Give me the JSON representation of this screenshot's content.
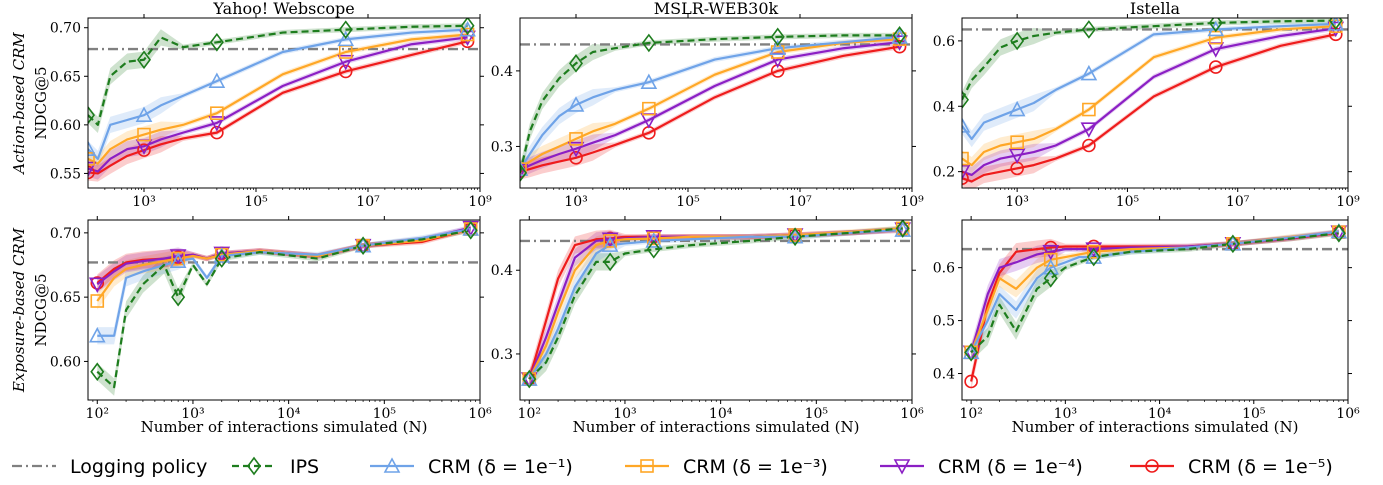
{
  "colors": {
    "logging": "#808080",
    "ips": "#1e7d1e",
    "crm1": "#6fa3e8",
    "crm3": "#ffa726",
    "crm4": "#8b1fc4",
    "crm5": "#ee1c1c"
  },
  "ylabel": "NDCG@5",
  "row_labels": [
    "Action-based CRM",
    "Exposure-based CRM"
  ],
  "legend": [
    {
      "key": "logging",
      "label": "Logging policy",
      "marker": "none",
      "dash": "dashdot"
    },
    {
      "key": "ips",
      "label": "IPS",
      "marker": "diamond",
      "dash": "dashed"
    },
    {
      "key": "crm1",
      "label": "CRM (δ = 1e⁻¹)",
      "marker": "triangle-up",
      "dash": "solid"
    },
    {
      "key": "crm3",
      "label": "CRM (δ = 1e⁻³)",
      "marker": "square",
      "dash": "solid"
    },
    {
      "key": "crm4",
      "label": "CRM (δ = 1e⁻⁴)",
      "marker": "triangle-down",
      "dash": "solid"
    },
    {
      "key": "crm5",
      "label": "CRM (δ = 1e⁻⁵)",
      "marker": "circle",
      "dash": "solid"
    }
  ],
  "chart_data": [
    {
      "type": "line",
      "title": "Yahoo! Webscope",
      "xlabel": "",
      "ylabel": "NDCG@5",
      "xscale": "log",
      "xlim": [
        100,
        1000000000.0
      ],
      "ylim": [
        0.535,
        0.71
      ],
      "xticks": [
        "10³",
        "10⁵",
        "10⁷",
        "10⁹"
      ],
      "yticks": [
        "0.55",
        "0.60",
        "0.65",
        "0.70"
      ],
      "logging": 0.678,
      "x": [
        100,
        150,
        250,
        500,
        1000,
        2000,
        5000,
        20000,
        300000,
        4000000,
        60000000,
        600000000
      ],
      "series": [
        {
          "key": "ips",
          "values": [
            0.61,
            0.6,
            0.65,
            0.665,
            0.667,
            0.69,
            0.68,
            0.685,
            0.695,
            0.698,
            0.701,
            0.702
          ]
        },
        {
          "key": "crm1",
          "values": [
            0.575,
            0.565,
            0.6,
            0.605,
            0.61,
            0.62,
            0.63,
            0.645,
            0.675,
            0.688,
            0.695,
            0.698
          ]
        },
        {
          "key": "crm3",
          "values": [
            0.565,
            0.56,
            0.575,
            0.585,
            0.59,
            0.595,
            0.6,
            0.612,
            0.652,
            0.675,
            0.688,
            0.693
          ]
        },
        {
          "key": "crm4",
          "values": [
            0.555,
            0.552,
            0.565,
            0.575,
            0.578,
            0.585,
            0.592,
            0.602,
            0.64,
            0.665,
            0.683,
            0.69
          ]
        },
        {
          "key": "crm5",
          "values": [
            0.551,
            0.55,
            0.558,
            0.568,
            0.574,
            0.58,
            0.586,
            0.592,
            0.633,
            0.655,
            0.672,
            0.686
          ]
        }
      ]
    },
    {
      "type": "line",
      "title": "MSLR-WEB30k",
      "xlabel": "",
      "ylabel": "",
      "xscale": "log",
      "xlim": [
        100,
        1000000000.0
      ],
      "ylim": [
        0.245,
        0.47
      ],
      "xticks": [
        "10³",
        "10⁵",
        "10⁷",
        "10⁹"
      ],
      "yticks": [
        "0.3",
        "0.4"
      ],
      "logging": 0.435,
      "x": [
        100,
        150,
        250,
        500,
        1000,
        2000,
        5000,
        20000,
        300000,
        4000000,
        60000000,
        600000000
      ],
      "series": [
        {
          "key": "ips",
          "values": [
            0.265,
            0.32,
            0.36,
            0.39,
            0.41,
            0.425,
            0.43,
            0.437,
            0.442,
            0.445,
            0.447,
            0.447
          ]
        },
        {
          "key": "crm1",
          "values": [
            0.27,
            0.29,
            0.315,
            0.34,
            0.355,
            0.365,
            0.375,
            0.385,
            0.415,
            0.43,
            0.438,
            0.445
          ]
        },
        {
          "key": "crm3",
          "values": [
            0.27,
            0.28,
            0.29,
            0.3,
            0.31,
            0.32,
            0.33,
            0.35,
            0.395,
            0.425,
            0.437,
            0.442
          ]
        },
        {
          "key": "crm4",
          "values": [
            0.268,
            0.275,
            0.282,
            0.29,
            0.297,
            0.305,
            0.315,
            0.335,
            0.38,
            0.415,
            0.43,
            0.438
          ]
        },
        {
          "key": "crm5",
          "values": [
            0.267,
            0.27,
            0.275,
            0.28,
            0.285,
            0.292,
            0.302,
            0.318,
            0.365,
            0.4,
            0.42,
            0.432
          ]
        }
      ]
    },
    {
      "type": "line",
      "title": "Istella",
      "xlabel": "",
      "ylabel": "",
      "xscale": "log",
      "xlim": [
        100,
        1000000000.0
      ],
      "ylim": [
        0.15,
        0.67
      ],
      "xticks": [
        "10³",
        "10⁵",
        "10⁷",
        "10⁹"
      ],
      "yticks": [
        "0.2",
        "0.4",
        "0.6"
      ],
      "logging": 0.635,
      "x": [
        100,
        150,
        250,
        500,
        1000,
        2000,
        5000,
        20000,
        300000,
        4000000,
        60000000,
        600000000
      ],
      "series": [
        {
          "key": "ips",
          "values": [
            0.42,
            0.48,
            0.52,
            0.58,
            0.6,
            0.615,
            0.625,
            0.635,
            0.645,
            0.655,
            0.66,
            0.662
          ]
        },
        {
          "key": "crm1",
          "values": [
            0.34,
            0.3,
            0.35,
            0.37,
            0.39,
            0.41,
            0.45,
            0.5,
            0.62,
            0.635,
            0.645,
            0.652
          ]
        },
        {
          "key": "crm3",
          "values": [
            0.24,
            0.22,
            0.26,
            0.28,
            0.29,
            0.3,
            0.33,
            0.39,
            0.55,
            0.61,
            0.635,
            0.645
          ]
        },
        {
          "key": "crm4",
          "values": [
            0.2,
            0.19,
            0.22,
            0.24,
            0.25,
            0.26,
            0.28,
            0.33,
            0.49,
            0.575,
            0.615,
            0.638
          ]
        },
        {
          "key": "crm5",
          "values": [
            0.18,
            0.17,
            0.19,
            0.2,
            0.21,
            0.22,
            0.24,
            0.28,
            0.43,
            0.52,
            0.585,
            0.62
          ]
        }
      ]
    },
    {
      "type": "line",
      "title": "",
      "xlabel": "Number of interactions simulated (N)",
      "ylabel": "NDCG@5",
      "xscale": "log",
      "xlim": [
        80,
        1000000.0
      ],
      "ylim": [
        0.57,
        0.71
      ],
      "xticks": [
        "10²",
        "10³",
        "10⁴",
        "10⁵",
        "10⁶"
      ],
      "yticks": [
        "0.60",
        "0.65",
        "0.70"
      ],
      "logging": 0.677,
      "x": [
        100,
        150,
        200,
        300,
        500,
        700,
        1000,
        1400,
        2000,
        5000,
        20000,
        60000,
        250000,
        800000
      ],
      "series": [
        {
          "key": "ips",
          "values": [
            0.592,
            0.58,
            0.64,
            0.66,
            0.675,
            0.65,
            0.675,
            0.66,
            0.68,
            0.685,
            0.68,
            0.69,
            0.695,
            0.702
          ]
        },
        {
          "key": "crm1",
          "values": [
            0.62,
            0.62,
            0.665,
            0.67,
            0.675,
            0.678,
            0.68,
            0.665,
            0.682,
            0.685,
            0.683,
            0.69,
            0.696,
            0.703
          ]
        },
        {
          "key": "crm3",
          "values": [
            0.647,
            0.665,
            0.672,
            0.675,
            0.678,
            0.68,
            0.682,
            0.68,
            0.683,
            0.686,
            0.682,
            0.69,
            0.694,
            0.703
          ]
        },
        {
          "key": "crm4",
          "values": [
            0.66,
            0.67,
            0.676,
            0.678,
            0.68,
            0.682,
            0.683,
            0.68,
            0.684,
            0.686,
            0.682,
            0.69,
            0.695,
            0.704
          ]
        },
        {
          "key": "crm5",
          "values": [
            0.661,
            0.672,
            0.677,
            0.679,
            0.68,
            0.681,
            0.683,
            0.68,
            0.684,
            0.686,
            0.682,
            0.69,
            0.693,
            0.703
          ]
        }
      ]
    },
    {
      "type": "line",
      "title": "",
      "xlabel": "Number of interactions simulated (N)",
      "ylabel": "",
      "xscale": "log",
      "xlim": [
        80,
        1000000.0
      ],
      "ylim": [
        0.245,
        0.46
      ],
      "xticks": [
        "10²",
        "10³",
        "10⁴",
        "10⁵",
        "10⁶"
      ],
      "yticks": [
        "0.3",
        "0.4"
      ],
      "logging": 0.435,
      "x": [
        100,
        150,
        200,
        300,
        500,
        700,
        1000,
        2000,
        5000,
        20000,
        60000,
        250000,
        800000
      ],
      "series": [
        {
          "key": "ips",
          "values": [
            0.27,
            0.29,
            0.32,
            0.37,
            0.41,
            0.41,
            0.42,
            0.425,
            0.43,
            0.435,
            0.44,
            0.445,
            0.45
          ]
        },
        {
          "key": "crm1",
          "values": [
            0.27,
            0.3,
            0.33,
            0.38,
            0.42,
            0.43,
            0.432,
            0.435,
            0.437,
            0.44,
            0.44,
            0.445,
            0.448
          ]
        },
        {
          "key": "crm3",
          "values": [
            0.27,
            0.31,
            0.35,
            0.4,
            0.43,
            0.435,
            0.437,
            0.438,
            0.44,
            0.44,
            0.442,
            0.446,
            0.45
          ]
        },
        {
          "key": "crm4",
          "values": [
            0.27,
            0.32,
            0.36,
            0.415,
            0.435,
            0.437,
            0.438,
            0.44,
            0.44,
            0.44,
            0.442,
            0.445,
            0.449
          ]
        },
        {
          "key": "crm5",
          "values": [
            0.27,
            0.34,
            0.39,
            0.43,
            0.437,
            0.438,
            0.44,
            0.44,
            0.44,
            0.44,
            0.442,
            0.445,
            0.448
          ]
        }
      ]
    },
    {
      "type": "line",
      "title": "",
      "xlabel": "Number of interactions simulated (N)",
      "ylabel": "",
      "xscale": "log",
      "xlim": [
        80,
        1000000.0
      ],
      "ylim": [
        0.35,
        0.69
      ],
      "xticks": [
        "10²",
        "10³",
        "10⁴",
        "10⁵",
        "10⁶"
      ],
      "yticks": [
        "0.4",
        "0.5",
        "0.6"
      ],
      "logging": 0.635,
      "x": [
        100,
        150,
        200,
        300,
        500,
        700,
        1000,
        1400,
        2000,
        5000,
        20000,
        60000,
        250000,
        800000
      ],
      "series": [
        {
          "key": "ips",
          "values": [
            0.44,
            0.47,
            0.53,
            0.48,
            0.56,
            0.58,
            0.6,
            0.61,
            0.62,
            0.63,
            0.635,
            0.645,
            0.655,
            0.665
          ]
        },
        {
          "key": "crm1",
          "values": [
            0.44,
            0.5,
            0.55,
            0.52,
            0.58,
            0.6,
            0.61,
            0.62,
            0.62,
            0.63,
            0.638,
            0.645,
            0.657,
            0.668
          ]
        },
        {
          "key": "crm3",
          "values": [
            0.44,
            0.52,
            0.58,
            0.56,
            0.6,
            0.615,
            0.62,
            0.625,
            0.63,
            0.635,
            0.638,
            0.645,
            0.658,
            0.667
          ]
        },
        {
          "key": "crm4",
          "values": [
            0.44,
            0.55,
            0.6,
            0.61,
            0.625,
            0.63,
            0.635,
            0.635,
            0.635,
            0.638,
            0.64,
            0.645,
            0.656,
            0.667
          ]
        },
        {
          "key": "crm5",
          "values": [
            0.385,
            0.53,
            0.59,
            0.63,
            0.635,
            0.638,
            0.64,
            0.64,
            0.64,
            0.64,
            0.64,
            0.645,
            0.655,
            0.666
          ]
        }
      ]
    }
  ]
}
